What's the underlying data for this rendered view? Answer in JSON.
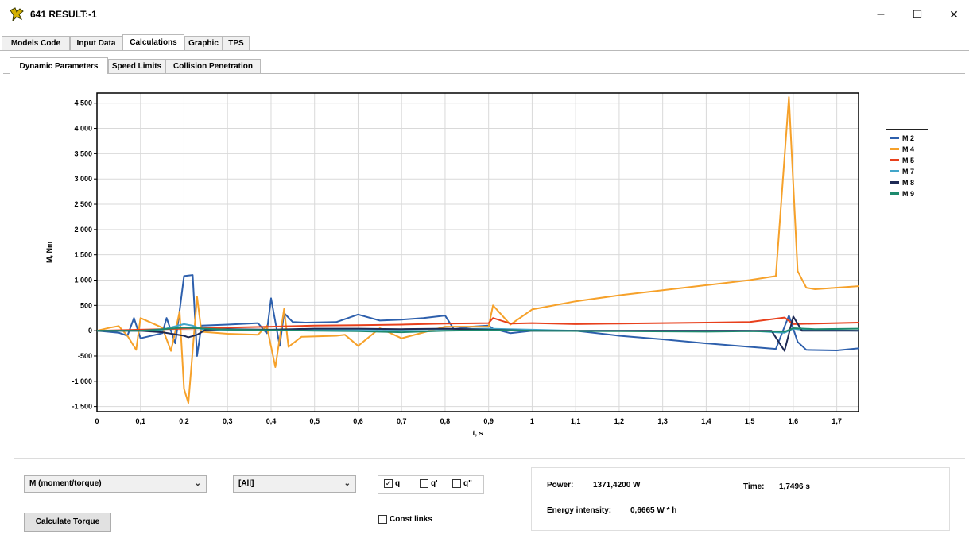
{
  "window": {
    "title": "641 RESULT:-1",
    "minimize_glyph": "–",
    "maximize_glyph": "☐",
    "close_glyph": "✕"
  },
  "tabs": [
    {
      "label": "Models Code"
    },
    {
      "label": "Input Data"
    },
    {
      "label": "Calculations"
    },
    {
      "label": "Graphic"
    },
    {
      "label": "TPS"
    }
  ],
  "subtabs": [
    {
      "label": "Dynamic Parameters"
    },
    {
      "label": "Speed Limits"
    },
    {
      "label": "Collision Penetration"
    }
  ],
  "chart_data": {
    "type": "line",
    "xlabel": "t, s",
    "ylabel": "M, Nm",
    "xlim": [
      0,
      1.75
    ],
    "ylim": [
      -1600,
      4700
    ],
    "grid": true,
    "legend_position": "right",
    "x_ticks": [
      "0",
      "0,1",
      "0,2",
      "0,3",
      "0,4",
      "0,5",
      "0,6",
      "0,7",
      "0,8",
      "0,9",
      "1",
      "1,1",
      "1,2",
      "1,3",
      "1,4",
      "1,5",
      "1,6",
      "1,7"
    ],
    "y_ticks": [
      "4 500",
      "4 000",
      "3 500",
      "3 000",
      "2 500",
      "2 000",
      "1 500",
      "1 000",
      "500",
      "0",
      "-500",
      "-1 000",
      "-1 500"
    ],
    "series": [
      {
        "name": "M 2",
        "color": "#2d5fac",
        "x": [
          0,
          0.05,
          0.07,
          0.085,
          0.1,
          0.15,
          0.16,
          0.18,
          0.19,
          0.2,
          0.22,
          0.23,
          0.24,
          0.3,
          0.37,
          0.39,
          0.4,
          0.42,
          0.43,
          0.45,
          0.48,
          0.55,
          0.6,
          0.65,
          0.7,
          0.75,
          0.8,
          0.82,
          0.86,
          0.9,
          0.91,
          0.95,
          1.0,
          1.1,
          1.2,
          1.3,
          1.4,
          1.5,
          1.56,
          1.59,
          1.61,
          1.63,
          1.7,
          1.75
        ],
        "y": [
          0,
          -40,
          -100,
          250,
          -150,
          -50,
          250,
          -250,
          400,
          1080,
          1100,
          -500,
          100,
          120,
          150,
          -50,
          640,
          -300,
          350,
          170,
          160,
          170,
          320,
          200,
          220,
          250,
          300,
          30,
          80,
          100,
          40,
          -50,
          0,
          0,
          -100,
          -170,
          -250,
          -320,
          -360,
          300,
          -220,
          -380,
          -390,
          -350
        ]
      },
      {
        "name": "M 4",
        "color": "#f6a12a",
        "x": [
          0,
          0.03,
          0.05,
          0.07,
          0.09,
          0.1,
          0.15,
          0.17,
          0.19,
          0.2,
          0.21,
          0.23,
          0.24,
          0.3,
          0.37,
          0.39,
          0.41,
          0.43,
          0.44,
          0.47,
          0.55,
          0.57,
          0.6,
          0.65,
          0.7,
          0.8,
          0.9,
          0.91,
          0.95,
          1.0,
          1.1,
          1.2,
          1.3,
          1.4,
          1.5,
          1.56,
          1.59,
          1.61,
          1.63,
          1.65,
          1.75
        ],
        "y": [
          0,
          60,
          90,
          -100,
          -380,
          250,
          60,
          -400,
          380,
          -1150,
          -1430,
          670,
          -20,
          -60,
          -80,
          100,
          -720,
          430,
          -320,
          -120,
          -100,
          -80,
          -300,
          50,
          -150,
          80,
          80,
          500,
          120,
          420,
          580,
          700,
          800,
          900,
          1000,
          1080,
          4620,
          1180,
          850,
          820,
          880
        ]
      },
      {
        "name": "M 5",
        "color": "#e8401c",
        "x": [
          0,
          0.1,
          0.2,
          0.3,
          0.4,
          0.5,
          0.6,
          0.7,
          0.8,
          0.9,
          0.91,
          0.95,
          1.0,
          1.1,
          1.2,
          1.3,
          1.4,
          1.5,
          1.58,
          1.6,
          1.65,
          1.75
        ],
        "y": [
          0,
          20,
          40,
          60,
          80,
          100,
          110,
          120,
          140,
          150,
          250,
          140,
          150,
          130,
          140,
          150,
          160,
          170,
          260,
          130,
          140,
          160
        ]
      },
      {
        "name": "M 7",
        "color": "#42a6c9",
        "x": [
          0,
          0.1,
          0.15,
          0.2,
          0.22,
          0.25,
          0.3,
          0.4,
          0.5,
          0.6,
          0.7,
          0.8,
          0.9,
          1.0,
          1.1,
          1.5,
          1.58,
          1.6,
          1.62,
          1.75
        ],
        "y": [
          0,
          0,
          20,
          130,
          100,
          0,
          10,
          10,
          20,
          20,
          20,
          30,
          40,
          20,
          0,
          0,
          -40,
          40,
          20,
          0
        ]
      },
      {
        "name": "M 8",
        "color": "#1e2a55",
        "x": [
          0,
          0.1,
          0.15,
          0.2,
          0.21,
          0.23,
          0.25,
          0.3,
          0.4,
          0.5,
          0.6,
          0.7,
          0.8,
          0.9,
          1.0,
          1.5,
          1.55,
          1.58,
          1.6,
          1.62,
          1.75
        ],
        "y": [
          0,
          0,
          -30,
          -100,
          -130,
          -80,
          20,
          30,
          20,
          40,
          40,
          30,
          40,
          20,
          0,
          0,
          0,
          -400,
          280,
          0,
          0
        ]
      },
      {
        "name": "M 9",
        "color": "#1d8a6e",
        "x": [
          0,
          0.1,
          0.2,
          0.3,
          0.4,
          0.5,
          0.6,
          0.7,
          0.8,
          0.9,
          1.0,
          1.2,
          1.4,
          1.5,
          1.58,
          1.6,
          1.65,
          1.75
        ],
        "y": [
          0,
          0,
          60,
          20,
          10,
          0,
          -10,
          -30,
          0,
          10,
          0,
          -10,
          -20,
          -10,
          -20,
          50,
          30,
          40
        ]
      }
    ]
  },
  "controls": {
    "quantity_select": "M (moment/torque)",
    "links_select": "[All]",
    "select_arrow": "⌄",
    "check_q": {
      "label": "q",
      "checked_glyph": "✓"
    },
    "check_q1": {
      "label": "q'"
    },
    "check_q2": {
      "label": "q\""
    },
    "const_links": {
      "label": "Const links"
    },
    "calculate_button": "Calculate Torque"
  },
  "info": {
    "power_label": "Power:",
    "power_value": "1371,4200 W",
    "time_label": "Time:",
    "time_value": "1,7496 s",
    "energy_label": "Energy intensity:",
    "energy_value": "0,6665 W * h"
  }
}
